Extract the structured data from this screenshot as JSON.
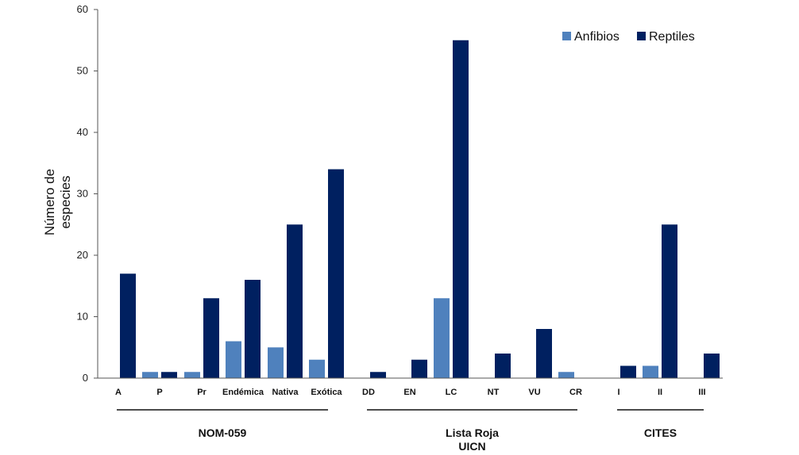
{
  "chart_data": {
    "type": "bar",
    "ylabel": [
      "Número de",
      "especies"
    ],
    "ylim": [
      0,
      60
    ],
    "yticks": [
      0,
      10,
      20,
      30,
      40,
      50,
      60
    ],
    "grid": false,
    "legend_position": "top-right",
    "colors": {
      "Anfibios": "#4f81bd",
      "Reptiles": "#002060"
    },
    "categories": [
      "A",
      "P",
      "Pr",
      "Endémica",
      "Nativa",
      "Exótica",
      "DD",
      "EN",
      "LC",
      "NT",
      "VU",
      "CR",
      "I",
      "II",
      "III"
    ],
    "series": [
      {
        "name": "Anfibios",
        "values": [
          0,
          1,
          1,
          6,
          5,
          3,
          0,
          0,
          13,
          0,
          0,
          1,
          0,
          2,
          0
        ]
      },
      {
        "name": "Reptiles",
        "values": [
          17,
          1,
          13,
          16,
          25,
          34,
          1,
          3,
          55,
          4,
          8,
          0,
          2,
          25,
          4
        ]
      }
    ],
    "groups": [
      {
        "label": [
          "NOM-059"
        ],
        "from": 0,
        "to": 5
      },
      {
        "label": [
          "Lista Roja",
          "UICN"
        ],
        "from": 6,
        "to": 11
      },
      {
        "label": [
          "CITES"
        ],
        "from": 12,
        "to": 14
      }
    ]
  }
}
